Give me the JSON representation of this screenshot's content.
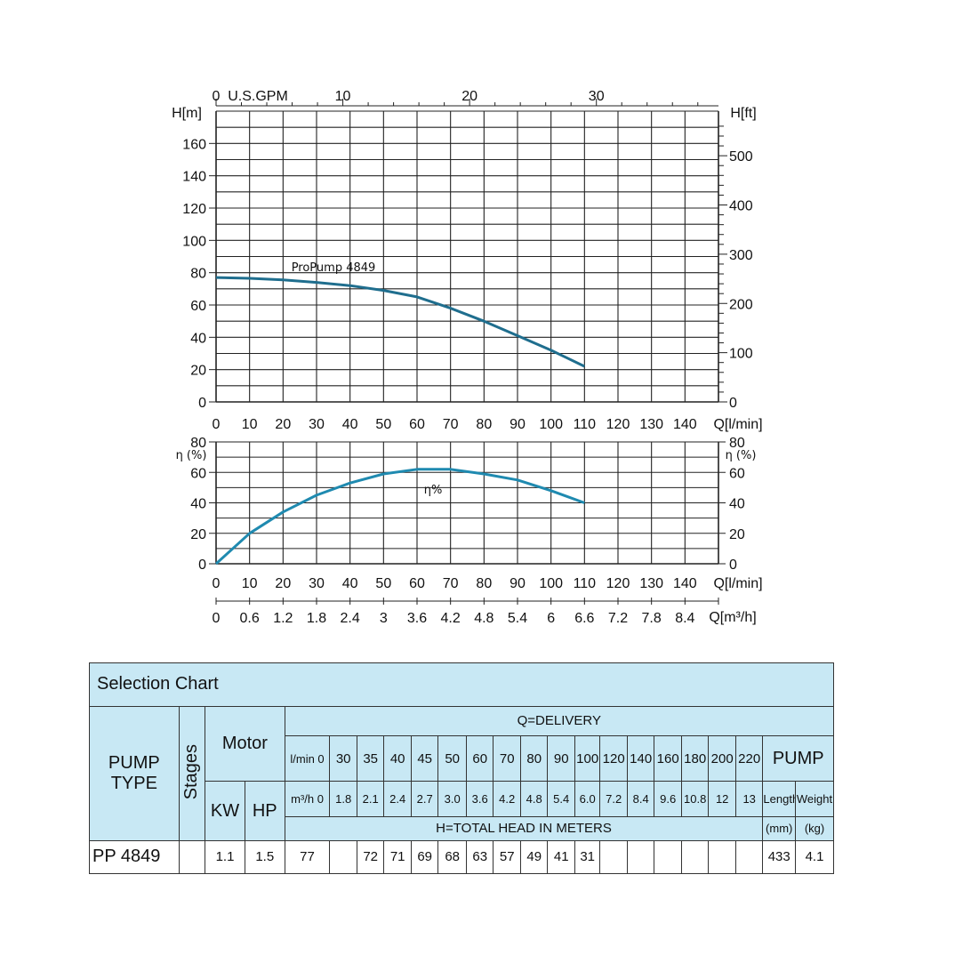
{
  "chart_data": [
    {
      "type": "line",
      "title": "",
      "xlabel": "Q[l/min]",
      "ylabel": "H[m]",
      "y2label": "H[ft]",
      "x2label": "U.S.GPM",
      "x_ticks": [
        "0",
        "10",
        "20",
        "30",
        "40",
        "50",
        "60",
        "70",
        "80",
        "90",
        "100",
        "110",
        "120",
        "130",
        "140"
      ],
      "y_ticks": [
        "0",
        "20",
        "40",
        "60",
        "80",
        "100",
        "120",
        "140",
        "160"
      ],
      "y2_ticks": [
        "0",
        "100",
        "200",
        "300",
        "400",
        "500"
      ],
      "x2_ticks": [
        "0",
        "10",
        "20",
        "30"
      ],
      "xlim": [
        0,
        150
      ],
      "ylim": [
        0,
        180
      ],
      "grid": true,
      "series": [
        {
          "name": "ProPump 4849",
          "x": [
            0,
            10,
            20,
            30,
            40,
            50,
            60,
            70,
            80,
            90,
            100,
            110
          ],
          "y": [
            77,
            76.5,
            75.5,
            74,
            72,
            69,
            65,
            58,
            50,
            41,
            32,
            22
          ]
        }
      ]
    },
    {
      "type": "line",
      "title": "",
      "xlabel": "Q[l/min]",
      "x2label": "Q[m³/h]",
      "ylabel": "η (%)",
      "y2label": "η (%)",
      "x_ticks": [
        "0",
        "10",
        "20",
        "30",
        "40",
        "50",
        "60",
        "70",
        "80",
        "90",
        "100",
        "110",
        "120",
        "130",
        "140"
      ],
      "x2_ticks": [
        "0",
        "0.6",
        "1.2",
        "1.8",
        "2.4",
        "3",
        "3.6",
        "4.2",
        "4.8",
        "5.4",
        "6",
        "6.6",
        "7.2",
        "7.8",
        "8.4"
      ],
      "y_ticks": [
        "0",
        "20",
        "40",
        "60",
        "80"
      ],
      "xlim": [
        0,
        150
      ],
      "ylim": [
        0,
        80
      ],
      "grid": true,
      "series": [
        {
          "name": "η%",
          "x": [
            0,
            10,
            20,
            30,
            40,
            50,
            60,
            70,
            80,
            90,
            100,
            110
          ],
          "y": [
            0,
            20,
            34,
            45,
            53,
            59,
            62,
            62,
            59,
            55,
            48,
            40
          ]
        }
      ]
    }
  ],
  "table": {
    "title": "Selection Chart",
    "pump_type": "PUMP TYPE",
    "pump_type_l1": "PUMP",
    "pump_type_l2": "TYPE",
    "stages": "Stages",
    "motor": "Motor",
    "kw": "KW",
    "hp": "HP",
    "delivery": "Q=DELIVERY",
    "lmin_label": "l/min 0",
    "m3h_label": "m³/h 0",
    "lmin_values": [
      "30",
      "35",
      "40",
      "45",
      "50",
      "60",
      "70",
      "80",
      "90",
      "100",
      "120",
      "140",
      "160",
      "180",
      "200",
      "220"
    ],
    "m3h_values": [
      "1.8",
      "2.1",
      "2.4",
      "2.7",
      "3.0",
      "3.6",
      "4.2",
      "4.8",
      "5.4",
      "6.0",
      "7.2",
      "8.4",
      "9.6",
      "10.8",
      "12",
      "13"
    ],
    "total_head": "H=TOTAL HEAD IN METERS",
    "pump": "PUMP",
    "length": "Length",
    "weight": "Weight",
    "length_unit": "(mm)",
    "weight_unit": "(kg)",
    "rows": [
      {
        "model": "PP 4849",
        "stages": "",
        "kw": "1.1",
        "hp": "1.5",
        "head0": "77",
        "heads": [
          "",
          "72",
          "71",
          "69",
          "68",
          "63",
          "57",
          "49",
          "41",
          "31",
          "",
          "",
          "",
          "",
          "",
          ""
        ],
        "length": "433",
        "weight": "4.1"
      }
    ]
  }
}
